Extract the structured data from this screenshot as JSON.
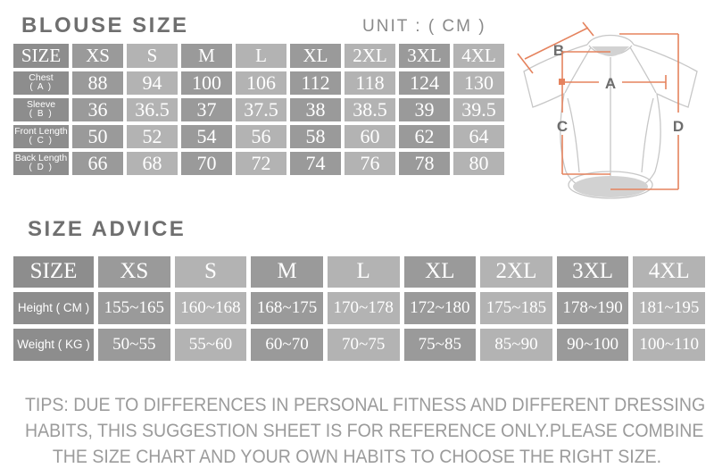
{
  "colors": {
    "title": "#6f6f6f",
    "unit": "#8a8a8a",
    "cell_text": "#ffffff",
    "col_label": "#8d8d8d",
    "col_dark": "#9a9a9a",
    "col_light": "#b3b3b3",
    "tips": "#9b9b9b",
    "diagram_line": "#e5835e",
    "diagram_outline": "#c7c7c7",
    "diagram_label": "#6d6d6d",
    "diagram_fill": "#d2d2d2"
  },
  "unit_label": "UNIT : ( CM )",
  "blouse_size": {
    "title": "BLOUSE SIZE",
    "columns": [
      "SIZE",
      "XS",
      "S",
      "M",
      "L",
      "XL",
      "2XL",
      "3XL",
      "4XL"
    ],
    "rows": [
      {
        "label": "Chest",
        "sub": "( A )",
        "values": [
          "88",
          "94",
          "100",
          "106",
          "112",
          "118",
          "124",
          "130"
        ]
      },
      {
        "label": "Sleeve",
        "sub": "( B )",
        "values": [
          "36",
          "36.5",
          "37",
          "37.5",
          "38",
          "38.5",
          "39",
          "39.5"
        ]
      },
      {
        "label": "Front Length",
        "sub": "( C )",
        "values": [
          "50",
          "52",
          "54",
          "56",
          "58",
          "60",
          "62",
          "64"
        ]
      },
      {
        "label": "Back Length",
        "sub": "( D )",
        "values": [
          "66",
          "68",
          "70",
          "72",
          "74",
          "76",
          "78",
          "80"
        ]
      }
    ]
  },
  "size_advice": {
    "title": "SIZE ADVICE",
    "columns": [
      "SIZE",
      "XS",
      "S",
      "M",
      "L",
      "XL",
      "2XL",
      "3XL",
      "4XL"
    ],
    "rows": [
      {
        "label": "Height ( CM )",
        "values": [
          "155~165",
          "160~168",
          "168~175",
          "170~178",
          "172~180",
          "175~185",
          "178~190",
          "181~195"
        ]
      },
      {
        "label": "Weight ( KG )",
        "values": [
          "50~55",
          "55~60",
          "60~70",
          "70~75",
          "75~85",
          "85~90",
          "90~100",
          "100~110"
        ]
      }
    ]
  },
  "diagram": {
    "labels": {
      "a": "A",
      "b": "B",
      "c": "C",
      "d": "D"
    }
  },
  "tips": {
    "lines": [
      "TIPS: DUE TO DIFFERENCES IN PERSONAL FITNESS AND DIFFERENT DRESSING",
      "HABITS, THIS SUGGESTION SHEET IS FOR REFERENCE ONLY.PLEASE COMBINE",
      "THE SIZE CHART AND YOUR OWN HABITS TO CHOOSE THE RIGHT SIZE."
    ]
  }
}
